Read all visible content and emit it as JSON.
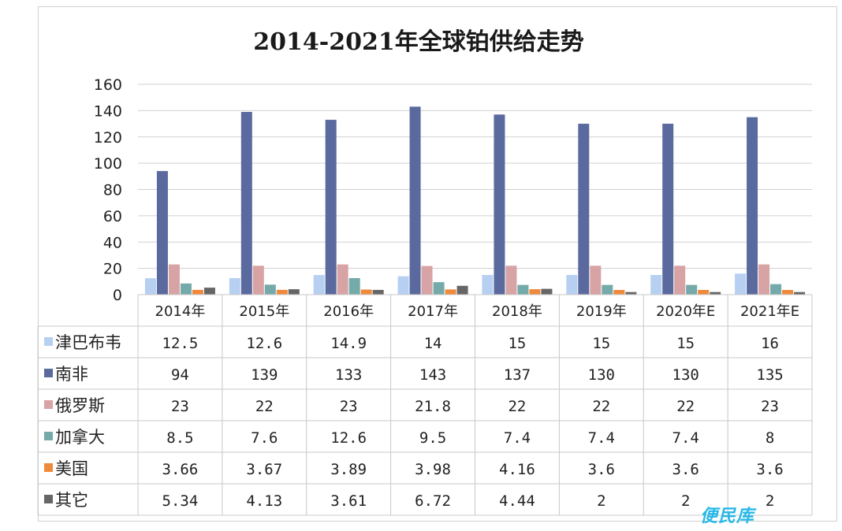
{
  "chart_data": {
    "type": "bar",
    "title": "2014-2021年全球铂供给走势",
    "categories": [
      "2014年",
      "2015年",
      "2016年",
      "2017年",
      "2018年",
      "2019年",
      "2020年E",
      "2021年E"
    ],
    "ylim": [
      0,
      160
    ],
    "yticks": [
      0,
      20,
      40,
      60,
      80,
      100,
      120,
      140,
      160
    ],
    "grid": true,
    "legend": "data-table-left",
    "series": [
      {
        "name": "津巴布韦",
        "color": "#b7d0f2",
        "values": [
          12.5,
          12.6,
          14.9,
          14,
          15,
          15,
          15,
          16
        ],
        "labels": [
          "12.5",
          "12.6",
          "14.9",
          "14",
          "15",
          "15",
          "15",
          "16"
        ]
      },
      {
        "name": "南非",
        "color": "#5b6a9e",
        "values": [
          94,
          139,
          133,
          143,
          137,
          130,
          130,
          135
        ],
        "labels": [
          "94",
          "139",
          "133",
          "143",
          "137",
          "130",
          "130",
          "135"
        ]
      },
      {
        "name": "俄罗斯",
        "color": "#d8a3a4",
        "values": [
          23,
          22,
          23,
          21.8,
          22,
          22,
          22,
          23
        ],
        "labels": [
          "23",
          "22",
          "23",
          "21.8",
          "22",
          "22",
          "22",
          "23"
        ]
      },
      {
        "name": "加拿大",
        "color": "#74aaa9",
        "values": [
          8.5,
          7.6,
          12.6,
          9.5,
          7.4,
          7.4,
          7.4,
          8
        ],
        "labels": [
          "8.5",
          "7.6",
          "12.6",
          "9.5",
          "7.4",
          "7.4",
          "7.4",
          "8"
        ]
      },
      {
        "name": "美国",
        "color": "#ef8a3d",
        "values": [
          3.66,
          3.67,
          3.89,
          3.98,
          4.16,
          3.6,
          3.6,
          3.6
        ],
        "labels": [
          "3.66",
          "3.67",
          "3.89",
          "3.98",
          "4.16",
          "3.6",
          "3.6",
          "3.6"
        ]
      },
      {
        "name": "其它",
        "color": "#666666",
        "values": [
          5.34,
          4.13,
          3.61,
          6.72,
          4.44,
          2,
          2,
          2
        ],
        "labels": [
          "5.34",
          "4.13",
          "3.61",
          "6.72",
          "4.44",
          "2",
          "2",
          "2"
        ]
      }
    ]
  },
  "watermark": "便民库"
}
